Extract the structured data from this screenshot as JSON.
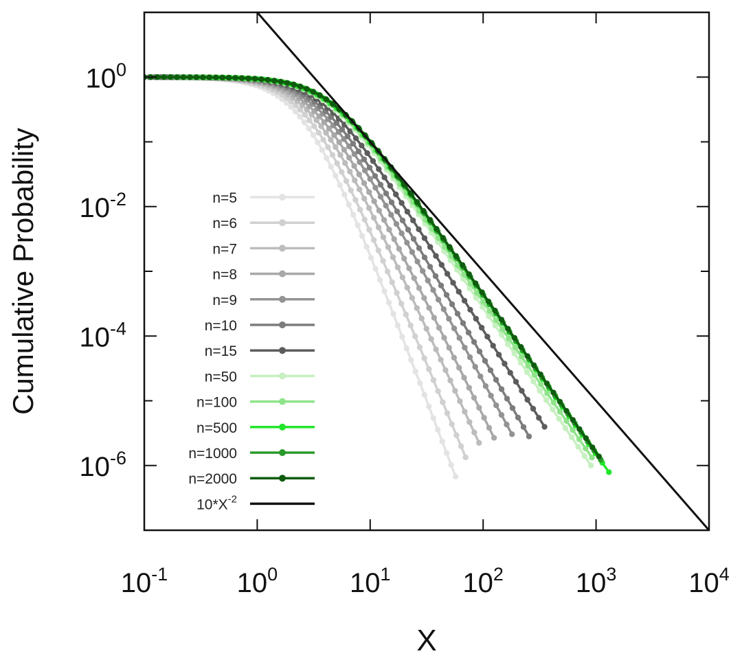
{
  "chart_data": {
    "type": "line",
    "title": "",
    "xlabel": "X",
    "ylabel": "Cumulative Probability",
    "xscale": "log",
    "yscale": "log",
    "xlim": [
      0.1,
      10000
    ],
    "ylim": [
      1e-07,
      10
    ],
    "grid": false,
    "legend_position": "left",
    "x_ticks": [
      {
        "value": 0.1,
        "base": "10",
        "exp": "-1"
      },
      {
        "value": 1,
        "base": "10",
        "exp": "0"
      },
      {
        "value": 10,
        "base": "10",
        "exp": "1"
      },
      {
        "value": 100,
        "base": "10",
        "exp": "2"
      },
      {
        "value": 1000,
        "base": "10",
        "exp": "3"
      },
      {
        "value": 10000,
        "base": "10",
        "exp": "4"
      }
    ],
    "y_ticks": [
      {
        "value": 1,
        "base": "10",
        "exp": "0"
      },
      {
        "value": 0.01,
        "base": "10",
        "exp": "-2"
      },
      {
        "value": 0.0001,
        "base": "10",
        "exp": "-4"
      },
      {
        "value": 1e-06,
        "base": "10",
        "exp": "-6"
      }
    ],
    "series": [
      {
        "name": "n=5",
        "color": "#e3e3e3",
        "curve": {
          "s": 2.6,
          "a": 4.6,
          "xmax": 57
        }
      },
      {
        "name": "n=6",
        "color": "#d0d0d0",
        "curve": {
          "s": 2.8,
          "a": 4.2,
          "xmax": 70
        }
      },
      {
        "name": "n=7",
        "color": "#bcbcbc",
        "curve": {
          "s": 3.0,
          "a": 3.8,
          "xmax": 92
        }
      },
      {
        "name": "n=8",
        "color": "#a8a8a8",
        "curve": {
          "s": 3.2,
          "a": 3.5,
          "xmax": 125
        }
      },
      {
        "name": "n=9",
        "color": "#939393",
        "curve": {
          "s": 3.4,
          "a": 3.2,
          "xmax": 180
        }
      },
      {
        "name": "n=10",
        "color": "#7c7c7c",
        "curve": {
          "s": 3.6,
          "a": 3.0,
          "xmax": 255
        }
      },
      {
        "name": "n=15",
        "color": "#5c5c5c",
        "curve": {
          "s": 3.8,
          "a": 2.75,
          "xmax": 350
        }
      },
      {
        "name": "n=50",
        "color": "#c6f0c0",
        "curve": {
          "s": 4.0,
          "a": 2.55,
          "xmax": 900
        }
      },
      {
        "name": "n=100",
        "color": "#8fe38a",
        "curve": {
          "s": 4.1,
          "a": 2.5,
          "xmax": 920
        }
      },
      {
        "name": "n=500",
        "color": "#22e62a",
        "curve": {
          "s": 4.2,
          "a": 2.45,
          "xmax": 1300
        }
      },
      {
        "name": "n=1000",
        "color": "#2a9a2a",
        "curve": {
          "s": 4.25,
          "a": 2.45,
          "xmax": 1100
        }
      },
      {
        "name": "n=2000",
        "color": "#0e5c0e",
        "curve": {
          "s": 4.3,
          "a": 2.45,
          "xmax": 1060
        }
      },
      {
        "name": "10*X^-2",
        "label_base": "10*X",
        "label_exp": "-2",
        "color": "#111111",
        "type": "reference",
        "func": "10*x^-2",
        "x_range": [
          1,
          10000
        ]
      }
    ]
  }
}
